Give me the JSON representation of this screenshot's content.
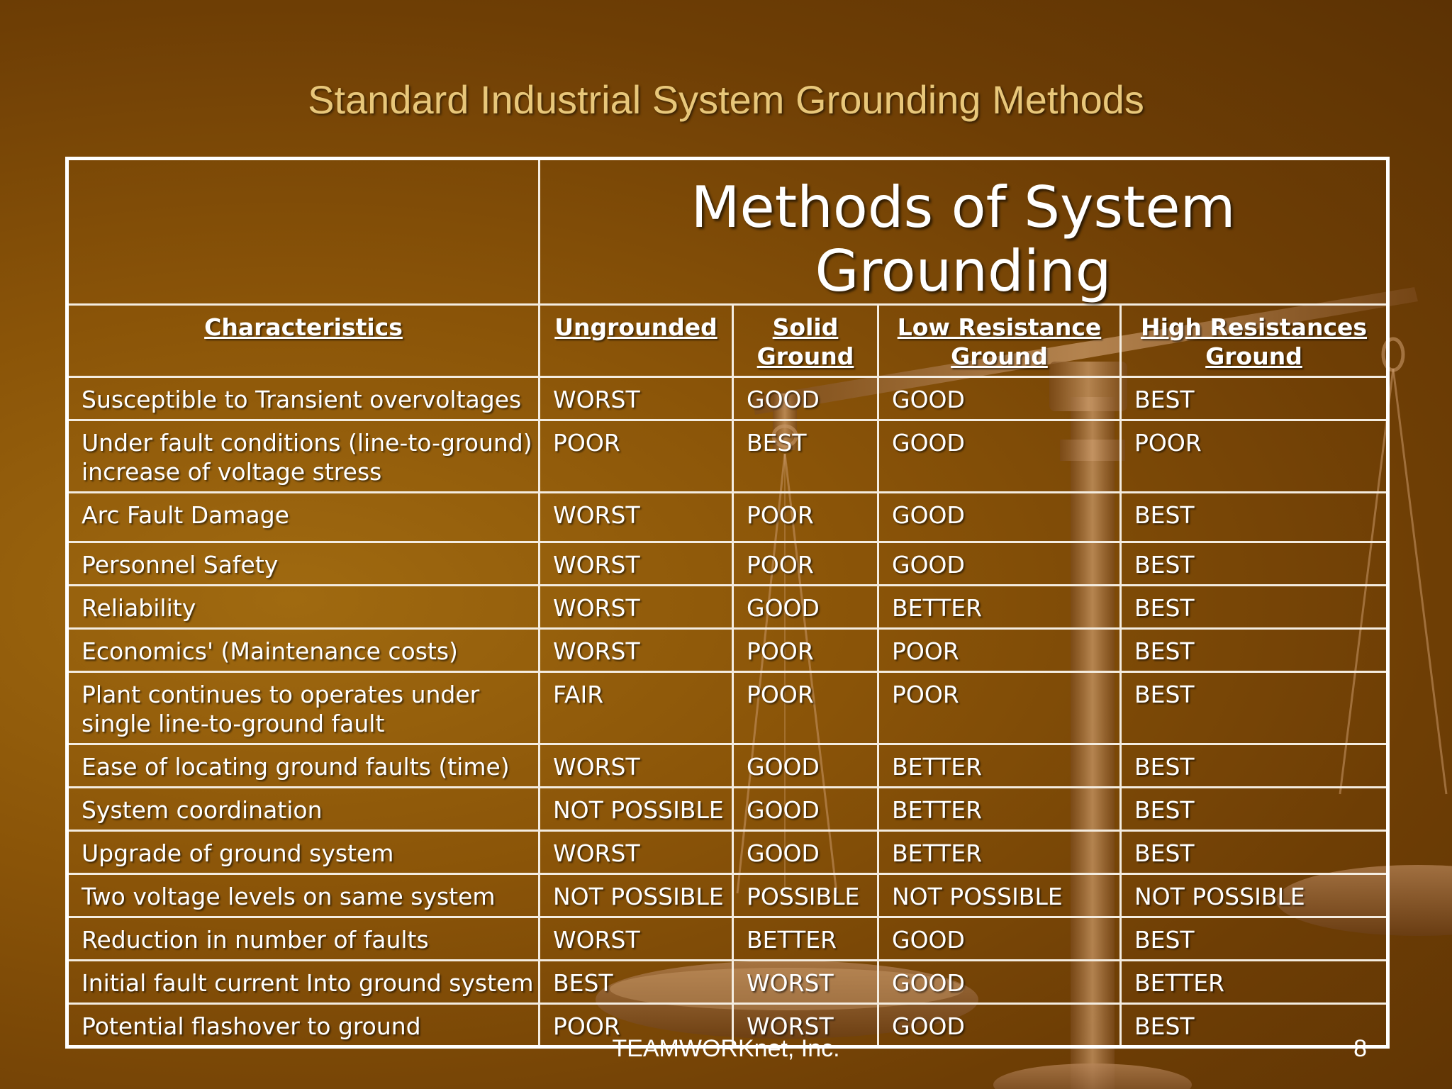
{
  "slide": {
    "title": "Standard Industrial System Grounding Methods",
    "footer": "TEAMWORKnet, Inc.",
    "page_number": "8"
  },
  "table": {
    "group_header": "Methods of System Grounding",
    "headers": [
      "Characteristics",
      "Ungrounded",
      "Solid Ground",
      "Low Resistance Ground",
      "High Resistances Ground"
    ],
    "rows": [
      [
        "Susceptible to Transient overvoltages",
        "WORST",
        "GOOD",
        "GOOD",
        "BEST"
      ],
      [
        "Under fault conditions (line-to-ground) increase of voltage stress",
        "POOR",
        "BEST",
        "GOOD",
        "POOR"
      ],
      [
        "Arc Fault Damage",
        "WORST",
        "POOR",
        "GOOD",
        "BEST"
      ],
      [
        "Personnel Safety",
        "WORST",
        "POOR",
        "GOOD",
        "BEST"
      ],
      [
        "Reliability",
        "WORST",
        "GOOD",
        "BETTER",
        "BEST"
      ],
      [
        "Economics' (Maintenance costs)",
        "WORST",
        "POOR",
        "POOR",
        "BEST"
      ],
      [
        "Plant continues to operates under single line-to-ground fault",
        "FAIR",
        "POOR",
        "POOR",
        "BEST"
      ],
      [
        "Ease of locating ground faults (time)",
        "WORST",
        "GOOD",
        "BETTER",
        "BEST"
      ],
      [
        "System coordination",
        "NOT POSSIBLE",
        "GOOD",
        "BETTER",
        "BEST"
      ],
      [
        "Upgrade of ground system",
        "WORST",
        "GOOD",
        "BETTER",
        "BEST"
      ],
      [
        "Two voltage levels on same system",
        "NOT POSSIBLE",
        "POSSIBLE",
        "NOT POSSIBLE",
        "NOT POSSIBLE"
      ],
      [
        "Reduction in number of faults",
        "WORST",
        "BETTER",
        "GOOD",
        "BEST"
      ],
      [
        "Initial fault current Into ground system",
        "BEST",
        "WORST",
        "GOOD",
        "BETTER"
      ],
      [
        "Potential flashover to ground",
        "POOR",
        "WORST",
        "GOOD",
        "BEST"
      ]
    ]
  },
  "colors": {
    "background": "#8a5408",
    "title": "#e8c77a",
    "text": "#ffffff"
  },
  "icons": {
    "background_art": "balance-scale-icon"
  }
}
